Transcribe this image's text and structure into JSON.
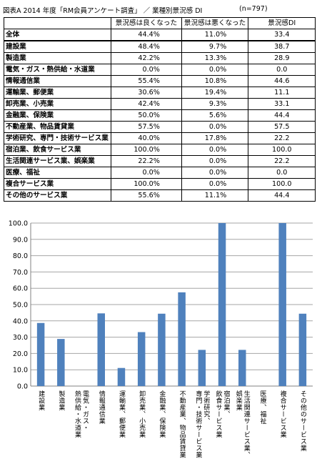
{
  "header": {
    "title": "図表A  2014 年度「RM会員アンケート調査」 ／  業種別景況感 DI",
    "n_label": "(n=797)"
  },
  "table": {
    "columns": [
      "",
      "景況感は良くなった",
      "景況感は悪くなった",
      "景況感DI"
    ],
    "rows": [
      {
        "label": "全体",
        "good": "44.4%",
        "bad": "11.0%",
        "di": "33.4"
      },
      {
        "label": "建設業",
        "good": "48.4%",
        "bad": "9.7%",
        "di": "38.7"
      },
      {
        "label": "製造業",
        "good": "42.2%",
        "bad": "13.3%",
        "di": "28.9"
      },
      {
        "label": "電気・ガス・熱供給・水道業",
        "good": "0.0%",
        "bad": "0.0%",
        "di": "0.0"
      },
      {
        "label": "情報通信業",
        "good": "55.4%",
        "bad": "10.8%",
        "di": "44.6"
      },
      {
        "label": "運輸業、郵便業",
        "good": "30.6%",
        "bad": "19.4%",
        "di": "11.1"
      },
      {
        "label": "卸売業、小売業",
        "good": "42.4%",
        "bad": "9.3%",
        "di": "33.1"
      },
      {
        "label": "金融業、保険業",
        "good": "50.0%",
        "bad": "5.6%",
        "di": "44.4"
      },
      {
        "label": "不動産業、物品賃貸業",
        "good": "57.5%",
        "bad": "0.0%",
        "di": "57.5"
      },
      {
        "label": "学術研究、専門・技術サービス業",
        "good": "40.0%",
        "bad": "17.8%",
        "di": "22.2"
      },
      {
        "label": "宿泊業、飲食サービス業",
        "good": "100.0%",
        "bad": "0.0%",
        "di": "100.0"
      },
      {
        "label": "生活関連サービス業、娯楽業",
        "good": "22.2%",
        "bad": "0.0%",
        "di": "22.2"
      },
      {
        "label": "医療、福祉",
        "good": "0.0%",
        "bad": "0.0%",
        "di": "0.0"
      },
      {
        "label": "複合サービス業",
        "good": "100.0%",
        "bad": "0.0%",
        "di": "100.0"
      },
      {
        "label": "その他のサービス業",
        "good": "55.6%",
        "bad": "11.1%",
        "di": "44.4"
      }
    ]
  },
  "chart_data": {
    "type": "bar",
    "categories": [
      "建設業",
      "製造業",
      "電気・ガス・熱供給・水道業",
      "情報通信業",
      "運輸業、郵便業",
      "卸売業、小売業",
      "金融業、保険業",
      "不動産業、物品賃貸業",
      "学術研究、専門・技術サービス業",
      "宿泊業、飲食サービス業",
      "生活関連サービス業、娯楽業",
      "医療、福祉",
      "複合サービス業",
      "その他のサービス業"
    ],
    "category_label_lines": [
      [
        "建設業"
      ],
      [
        "製造業"
      ],
      [
        "電気・ガス・",
        "熱供給・水道業"
      ],
      [
        "情報通信業"
      ],
      [
        "運輸業、郵便業"
      ],
      [
        "卸売業、小売業"
      ],
      [
        "金融業、保険業"
      ],
      [
        "不動産業、物品賃貸業"
      ],
      [
        "学術研究、",
        "専門・技術サービス業"
      ],
      [
        "宿泊業、",
        "飲食サービス業"
      ],
      [
        "生活関連サービス業、",
        "娯楽業"
      ],
      [
        "医療、福祉"
      ],
      [
        "複合サービス業"
      ],
      [
        "その他のサービス業"
      ]
    ],
    "values": [
      38.7,
      28.9,
      0.0,
      44.6,
      11.1,
      33.1,
      44.4,
      57.5,
      22.2,
      100.0,
      22.2,
      0.0,
      100.0,
      44.4
    ],
    "yticks": [
      "0.0",
      "10.0",
      "20.0",
      "30.0",
      "40.0",
      "50.0",
      "60.0",
      "70.0",
      "80.0",
      "90.0",
      "100.0"
    ],
    "ylim": [
      0,
      100
    ],
    "grid": true,
    "bar_color": "#4f81bd",
    "grid_color": "#a6a6a6",
    "title": "",
    "xlabel": "",
    "ylabel": ""
  }
}
